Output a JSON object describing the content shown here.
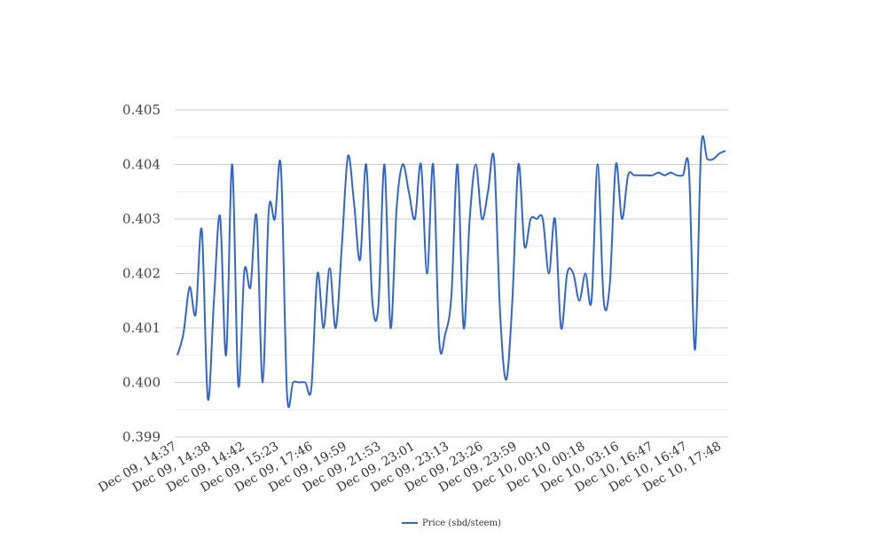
{
  "chart_data": {
    "type": "line",
    "title": "",
    "xlabel": "",
    "ylabel": "",
    "ylim": [
      0.399,
      0.405
    ],
    "yticks": [
      "0.399",
      "0.400",
      "0.401",
      "0.402",
      "0.403",
      "0.404",
      "0.405"
    ],
    "grid": true,
    "legend_position": "bottom-center",
    "x_tick_labels": [
      "Dec 09, 14:37",
      "Dec 09, 14:38",
      "Dec 09, 14:42",
      "Dec 09, 15:23",
      "Dec 09, 17:46",
      "Dec 09, 19:59",
      "Dec 09, 21:53",
      "Dec 09, 23:01",
      "Dec 09, 23:13",
      "Dec 09, 23:26",
      "Dec 09, 23:59",
      "Dec 10, 00:10",
      "Dec 10, 00:18",
      "Dec 10, 03:16",
      "Dec 10, 16:47",
      "Dec 10, 16:47",
      "Dec 10, 17:48"
    ],
    "series": [
      {
        "name": "Price (sbd/steem)",
        "color": "#3366cc",
        "values": [
          0.4005,
          0.4009,
          0.40175,
          0.40125,
          0.4028,
          0.3997,
          0.4015,
          0.40305,
          0.4005,
          0.404,
          0.39995,
          0.40205,
          0.40175,
          0.40305,
          0.4,
          0.40315,
          0.403,
          0.40395,
          0.3998,
          0.4,
          0.4,
          0.4,
          0.3999,
          0.402,
          0.401,
          0.4021,
          0.401,
          0.4025,
          0.40415,
          0.4033,
          0.40225,
          0.404,
          0.4015,
          0.4014,
          0.404,
          0.401,
          0.4032,
          0.404,
          0.4035,
          0.403,
          0.404,
          0.402,
          0.404,
          0.40075,
          0.4009,
          0.4016,
          0.404,
          0.401,
          0.403,
          0.404,
          0.403,
          0.4035,
          0.4041,
          0.40125,
          0.40005,
          0.4015,
          0.404,
          0.4025,
          0.403,
          0.403,
          0.403,
          0.402,
          0.403,
          0.401,
          0.402,
          0.402,
          0.4015,
          0.402,
          0.4015,
          0.404,
          0.4015,
          0.4018,
          0.404,
          0.403,
          0.4038,
          0.4038,
          0.4038,
          0.4038,
          0.4038,
          0.40385,
          0.4038,
          0.40385,
          0.4038,
          0.4038,
          0.4039,
          0.4006,
          0.4043,
          0.4041,
          0.4041,
          0.4042,
          0.40425
        ]
      }
    ]
  }
}
